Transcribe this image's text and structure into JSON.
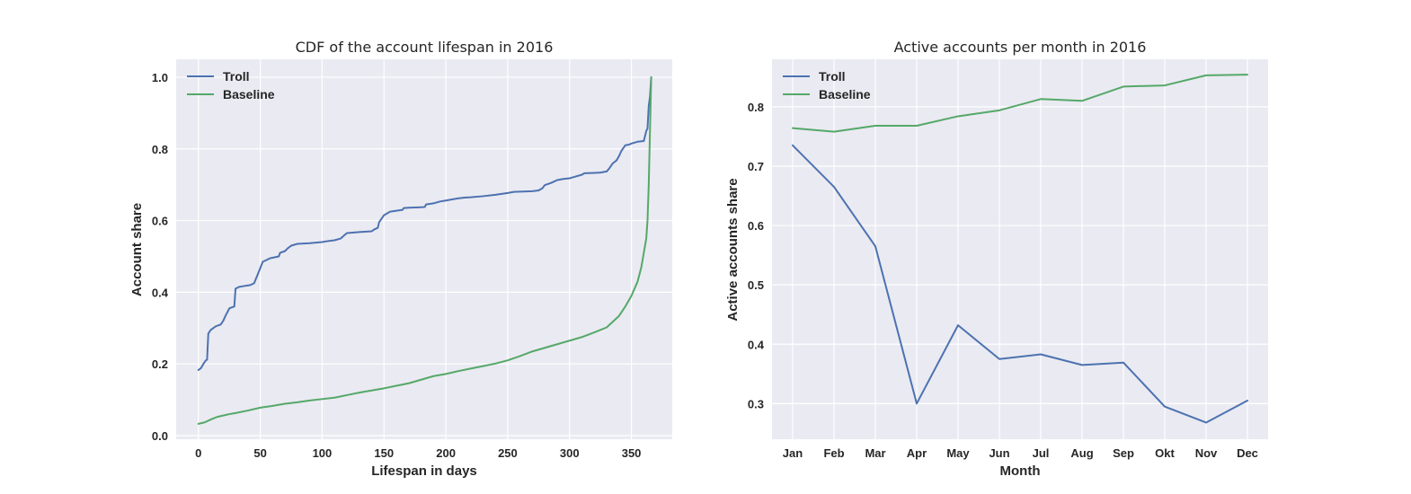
{
  "chart_data": [
    {
      "type": "line",
      "title": "CDF of the account lifespan in 2016",
      "xlabel": "Lifespan in days",
      "ylabel": "Account share",
      "xlim": [
        -18,
        383
      ],
      "ylim": [
        -0.01,
        1.05
      ],
      "xticks": [
        "0",
        "50",
        "100",
        "150",
        "200",
        "250",
        "300",
        "350"
      ],
      "yticks": [
        "0.0",
        "0.2",
        "0.4",
        "0.6",
        "0.8",
        "1.0"
      ],
      "grid": true,
      "legend_position": "top-left",
      "series": [
        {
          "name": "Troll",
          "color": "#4c72b0",
          "x": [
            0,
            2,
            4,
            6,
            7,
            8,
            10,
            14,
            18,
            20,
            22,
            25,
            27,
            29,
            30,
            33,
            38,
            42,
            45,
            48,
            52,
            58,
            65,
            66,
            70,
            72,
            75,
            80,
            90,
            100,
            105,
            110,
            115,
            120,
            130,
            140,
            142,
            145,
            146,
            150,
            155,
            165,
            166,
            170,
            180,
            183,
            184,
            190,
            195,
            200,
            205,
            210,
            215,
            220,
            230,
            240,
            250,
            255,
            270,
            275,
            278,
            280,
            285,
            290,
            295,
            300,
            310,
            312,
            320,
            325,
            330,
            332,
            335,
            338,
            340,
            342,
            345,
            348,
            350,
            355,
            360,
            362,
            363,
            364,
            365,
            366
          ],
          "y": [
            0.183,
            0.188,
            0.2,
            0.21,
            0.212,
            0.285,
            0.295,
            0.305,
            0.31,
            0.32,
            0.335,
            0.355,
            0.358,
            0.36,
            0.41,
            0.415,
            0.418,
            0.42,
            0.425,
            0.45,
            0.485,
            0.495,
            0.5,
            0.51,
            0.515,
            0.522,
            0.53,
            0.535,
            0.537,
            0.54,
            0.543,
            0.545,
            0.55,
            0.565,
            0.568,
            0.57,
            0.575,
            0.58,
            0.595,
            0.615,
            0.625,
            0.63,
            0.635,
            0.636,
            0.637,
            0.638,
            0.645,
            0.648,
            0.653,
            0.656,
            0.659,
            0.662,
            0.664,
            0.665,
            0.668,
            0.672,
            0.677,
            0.68,
            0.682,
            0.684,
            0.69,
            0.699,
            0.705,
            0.713,
            0.716,
            0.718,
            0.728,
            0.732,
            0.733,
            0.734,
            0.737,
            0.745,
            0.76,
            0.768,
            0.78,
            0.795,
            0.81,
            0.812,
            0.815,
            0.82,
            0.822,
            0.85,
            0.857,
            0.92,
            0.945,
            1.0
          ]
        },
        {
          "name": "Baseline",
          "color": "#55a868",
          "x": [
            0,
            5,
            10,
            15,
            20,
            25,
            30,
            40,
            50,
            60,
            70,
            80,
            90,
            100,
            110,
            120,
            130,
            140,
            150,
            160,
            170,
            180,
            190,
            200,
            210,
            220,
            230,
            240,
            250,
            260,
            270,
            280,
            290,
            300,
            310,
            320,
            330,
            335,
            340,
            345,
            350,
            355,
            358,
            360,
            362,
            363,
            364,
            365,
            366
          ],
          "y": [
            0.033,
            0.037,
            0.045,
            0.052,
            0.056,
            0.06,
            0.063,
            0.07,
            0.078,
            0.083,
            0.089,
            0.093,
            0.098,
            0.102,
            0.106,
            0.113,
            0.12,
            0.126,
            0.132,
            0.139,
            0.146,
            0.156,
            0.166,
            0.172,
            0.18,
            0.187,
            0.194,
            0.201,
            0.21,
            0.222,
            0.235,
            0.245,
            0.255,
            0.265,
            0.275,
            0.288,
            0.302,
            0.318,
            0.334,
            0.36,
            0.39,
            0.43,
            0.47,
            0.51,
            0.55,
            0.6,
            0.7,
            0.85,
            1.0
          ]
        }
      ]
    },
    {
      "type": "line",
      "title": "Active accounts per month in 2016",
      "xlabel": "Month",
      "ylabel": "Active accounts share",
      "categories": [
        "Jan",
        "Feb",
        "Mar",
        "Apr",
        "May",
        "Jun",
        "Jul",
        "Aug",
        "Sep",
        "Okt",
        "Nov",
        "Dec"
      ],
      "ylim": [
        0.24,
        0.88
      ],
      "yticks": [
        "0.3",
        "0.4",
        "0.5",
        "0.6",
        "0.7",
        "0.8"
      ],
      "grid": true,
      "legend_position": "top-left",
      "series": [
        {
          "name": "Troll",
          "color": "#4c72b0",
          "values": [
            0.735,
            0.665,
            0.565,
            0.3,
            0.432,
            0.375,
            0.383,
            0.365,
            0.369,
            0.295,
            0.268,
            0.305
          ]
        },
        {
          "name": "Baseline",
          "color": "#55a868",
          "values": [
            0.764,
            0.758,
            0.768,
            0.768,
            0.784,
            0.794,
            0.813,
            0.81,
            0.834,
            0.836,
            0.853,
            0.854
          ]
        }
      ]
    }
  ]
}
